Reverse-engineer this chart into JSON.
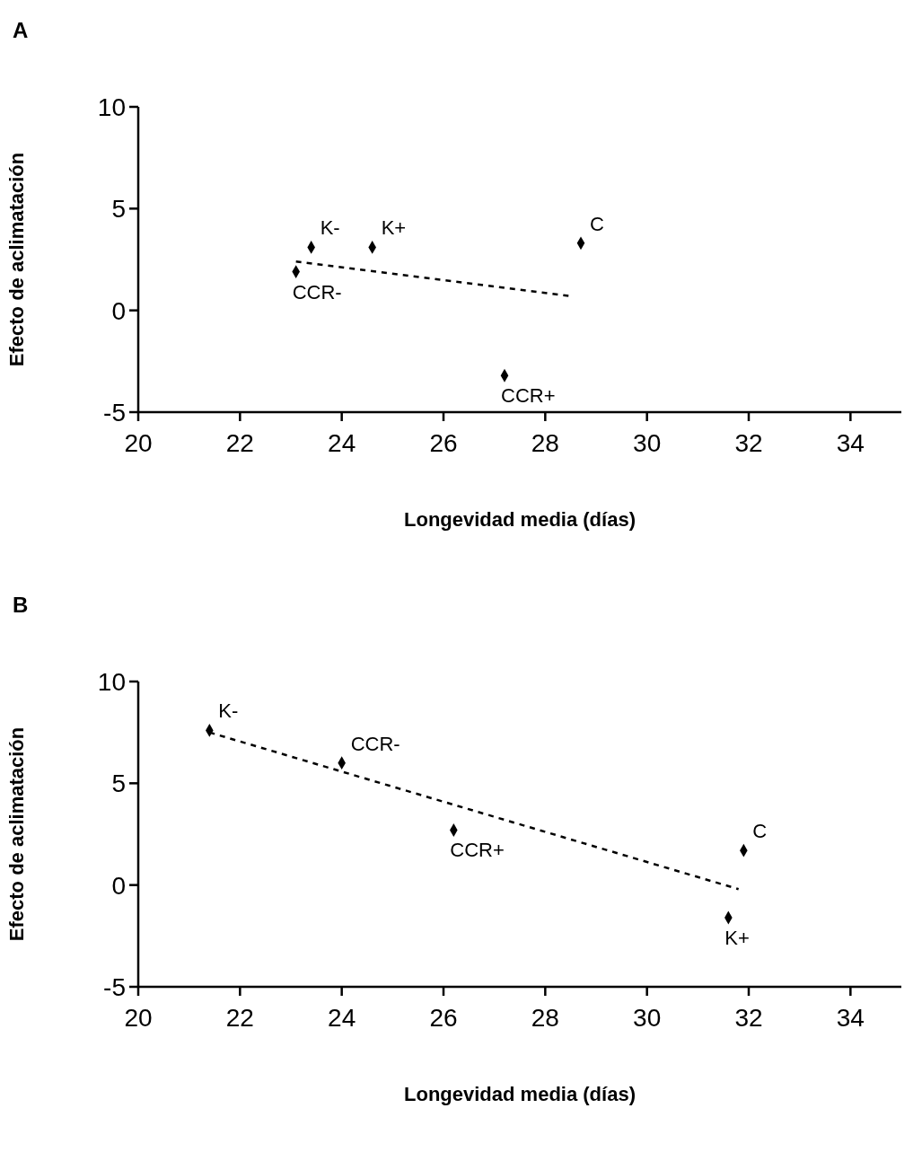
{
  "chart_data": [
    {
      "type": "scatter",
      "title": "A",
      "xlabel": "Longevidad media (días)",
      "ylabel": "Efecto de aclimatación",
      "x": [
        23.4,
        24.6,
        28.7,
        23.1,
        27.2
      ],
      "xlim": [
        20,
        35
      ],
      "xticks": [
        20,
        22,
        24,
        26,
        28,
        30,
        32,
        34
      ],
      "ylim": [
        -5,
        10
      ],
      "yticks": [
        -5,
        0,
        5,
        10
      ],
      "grid": false,
      "legend": false,
      "marker": "diamond",
      "series": [
        {
          "color": "#000000",
          "values": [
            3.1,
            3.1,
            3.3,
            1.9,
            -3.2
          ]
        },
        {
          "type": "line",
          "color": "#000000",
          "line_style": "dashed",
          "marker": "none",
          "x": [
            23.1,
            28.5
          ],
          "values": [
            2.4,
            0.7
          ]
        }
      ],
      "annotations": [
        {
          "text": "K-",
          "x": 23.4,
          "y": 3.1
        },
        {
          "text": "K+",
          "x": 24.6,
          "y": 3.1
        },
        {
          "text": "C",
          "x": 28.7,
          "y": 3.3
        },
        {
          "text": "CCR-",
          "x": 23.1,
          "y": 1.9
        },
        {
          "text": "CCR+",
          "x": 27.2,
          "y": -3.2
        }
      ]
    },
    {
      "type": "scatter",
      "title": "B",
      "xlabel": "Longevidad media (días)",
      "ylabel": "Efecto de aclimatación",
      "x": [
        21.4,
        24.0,
        26.2,
        31.9,
        31.6
      ],
      "xlim": [
        20,
        35
      ],
      "xticks": [
        20,
        22,
        24,
        26,
        28,
        30,
        32,
        34
      ],
      "ylim": [
        -5,
        10
      ],
      "yticks": [
        -5,
        0,
        5,
        10
      ],
      "grid": false,
      "legend": false,
      "marker": "diamond",
      "series": [
        {
          "color": "#000000",
          "values": [
            7.6,
            6.0,
            2.7,
            1.7,
            -1.6
          ]
        },
        {
          "type": "line",
          "color": "#000000",
          "line_style": "dashed",
          "marker": "none",
          "x": [
            21.4,
            31.8
          ],
          "values": [
            7.5,
            -0.2
          ]
        }
      ],
      "annotations": [
        {
          "text": "K-",
          "x": 21.4,
          "y": 7.6
        },
        {
          "text": "CCR-",
          "x": 24.0,
          "y": 6.0
        },
        {
          "text": "CCR+",
          "x": 26.2,
          "y": 2.7
        },
        {
          "text": "C",
          "x": 31.9,
          "y": 1.7
        },
        {
          "text": "K+",
          "x": 31.6,
          "y": -1.6
        }
      ]
    }
  ]
}
